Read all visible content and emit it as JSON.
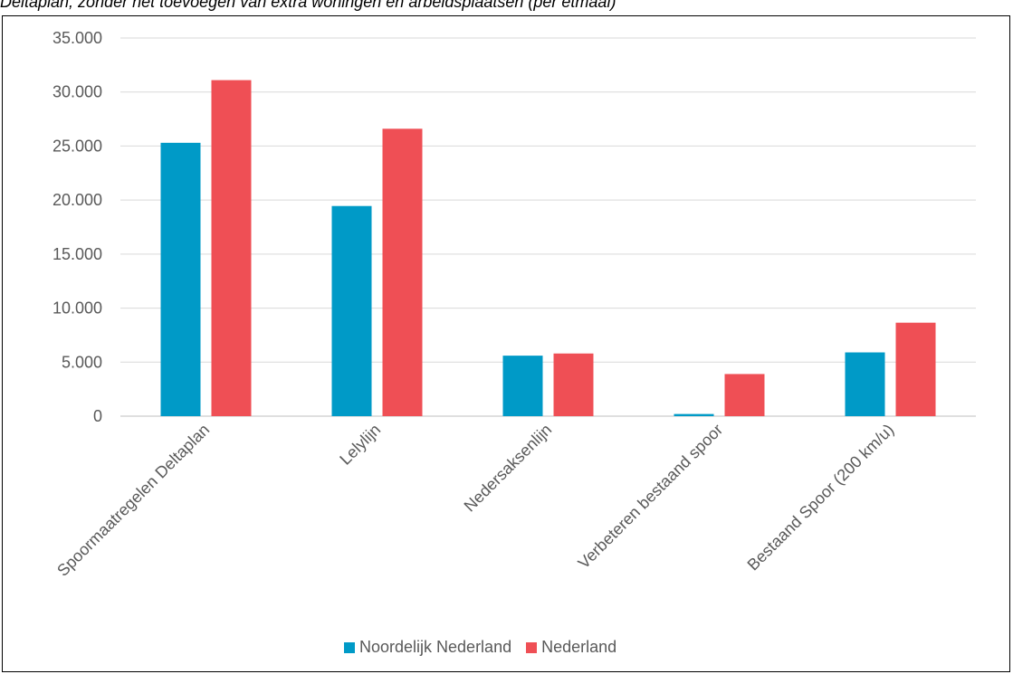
{
  "caption": "Deltaplan, zonder het toevoegen van extra woningen en arbeidsplaatsen (per etmaal)",
  "chart_data": {
    "type": "bar",
    "title": "",
    "xlabel": "",
    "ylabel": "",
    "ylim": [
      0,
      35000
    ],
    "yticks": [
      "0",
      "5.000",
      "10.000",
      "15.000",
      "20.000",
      "25.000",
      "30.000",
      "35.000"
    ],
    "grid": true,
    "legend_position": "bottom",
    "categories": [
      "Spoormaatregelen Deltaplan",
      "Lelylijn",
      "Nedersaksenlijn",
      "Verbeteren bestaand spoor",
      "Bestaand Spoor (200 km/u)"
    ],
    "series": [
      {
        "name": "Noordelijk Nederland",
        "color": "#009ac7",
        "values": [
          25300,
          19450,
          5600,
          200,
          5900
        ]
      },
      {
        "name": "Nederland",
        "color": "#ef4f55",
        "values": [
          31100,
          26600,
          5800,
          3900,
          8650
        ]
      }
    ]
  }
}
